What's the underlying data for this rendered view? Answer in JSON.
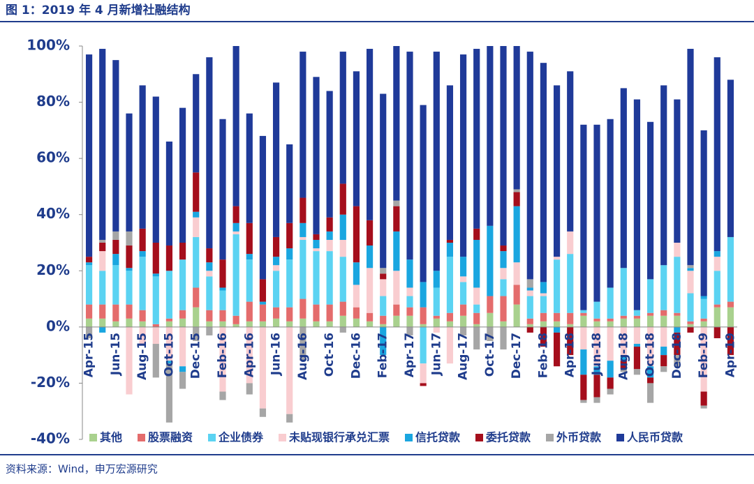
{
  "header": {
    "title": "图 1：2019 年 4 月新增社融结构"
  },
  "footer": {
    "source": "资料来源：Wind，申万宏源研究"
  },
  "chart_data": {
    "type": "stacked-bar",
    "categories": [
      "Apr-15",
      null,
      "Jun-15",
      null,
      "Aug-15",
      null,
      "Oct-15",
      null,
      "Dec-15",
      null,
      "Feb-16",
      null,
      "Apr-16",
      null,
      "Jun-16",
      null,
      "Aug-16",
      null,
      "Oct-16",
      null,
      "Dec-16",
      null,
      "Feb-17",
      null,
      "Apr-17",
      null,
      "Jun-17",
      null,
      "Aug-17",
      null,
      "Oct-17",
      null,
      "Dec-17",
      null,
      "Feb-18",
      null,
      "Apr-18",
      null,
      "Jun-18",
      null,
      "Aug-18",
      null,
      "Oct-18",
      null,
      "Dec-18",
      null,
      "Feb-19",
      null,
      "Apr-19"
    ],
    "ylim": [
      -40,
      100
    ],
    "yticks": [
      {
        "value": -40,
        "label": "-40%"
      },
      {
        "value": -20,
        "label": "-20%"
      },
      {
        "value": 0,
        "label": "0%"
      },
      {
        "value": 20,
        "label": "20%"
      },
      {
        "value": 40,
        "label": "40%"
      },
      {
        "value": 60,
        "label": "60%"
      },
      {
        "value": 80,
        "label": "80%"
      },
      {
        "value": 100,
        "label": "100%"
      }
    ],
    "legend": "bottom",
    "series": [
      {
        "name": "其他",
        "color": "#a9d18e",
        "values": [
          3,
          3,
          2,
          3,
          2,
          0,
          2,
          3,
          7,
          2,
          2,
          1,
          2,
          2,
          3,
          2,
          3,
          2,
          2,
          4,
          3,
          2,
          1,
          4,
          4,
          1,
          3,
          2,
          4,
          1,
          5,
          2,
          8,
          1,
          2,
          2,
          1,
          4,
          2,
          2,
          3,
          3,
          4,
          4,
          4,
          1,
          2,
          7,
          7
        ]
      },
      {
        "name": "股票融资",
        "color": "#e46c6c",
        "values": [
          5,
          5,
          6,
          5,
          4,
          1,
          1,
          3,
          7,
          4,
          4,
          3,
          7,
          6,
          4,
          5,
          7,
          6,
          6,
          5,
          4,
          3,
          3,
          4,
          3,
          6,
          1,
          3,
          4,
          4,
          6,
          9,
          7,
          2,
          3,
          3,
          4,
          1,
          1,
          1,
          1,
          1,
          1,
          2,
          1,
          1,
          1,
          1,
          2
        ]
      },
      {
        "name": "企业债券",
        "color": "#5bd3f2",
        "values": [
          14,
          12,
          14,
          12,
          19,
          17,
          17,
          18,
          18,
          12,
          7,
          29,
          15,
          0,
          13,
          17,
          21,
          19,
          19,
          16,
          0,
          0,
          7,
          0,
          4,
          -13,
          10,
          20,
          8,
          3,
          0,
          6,
          0,
          8,
          6,
          19,
          21,
          1,
          6,
          11,
          17,
          2,
          12,
          16,
          20,
          10,
          7,
          12,
          23
        ]
      },
      {
        "name": "未贴现银行承兑汇票",
        "color": "#f9cdd0",
        "values": [
          0,
          7,
          0,
          -24,
          -6,
          -6,
          -12,
          -14,
          7,
          2,
          -23,
          1,
          -20,
          -29,
          2,
          -31,
          1,
          1,
          4,
          6,
          8,
          16,
          6,
          12,
          3,
          -7,
          -2,
          -13,
          2,
          6,
          0,
          4,
          8,
          2,
          1,
          1,
          8,
          -8,
          -14,
          -12,
          -10,
          -6,
          -14,
          -7,
          5,
          8,
          -23,
          5,
          0
        ]
      },
      {
        "name": "信托贷款",
        "color": "#1aa6e0",
        "values": [
          1,
          -2,
          4,
          1,
          2,
          1,
          -1,
          -2,
          2,
          3,
          1,
          3,
          2,
          1,
          3,
          4,
          5,
          3,
          3,
          9,
          8,
          8,
          -10,
          14,
          10,
          9,
          6,
          5,
          7,
          17,
          25,
          6,
          20,
          1,
          4,
          -2,
          0,
          -9,
          -3,
          -6,
          -2,
          -1,
          -4,
          -3,
          -2,
          1,
          1,
          2,
          0
        ]
      },
      {
        "name": "委托贷款",
        "color": "#a50e1c",
        "values": [
          2,
          3,
          5,
          8,
          8,
          11,
          9,
          6,
          14,
          5,
          10,
          6,
          11,
          8,
          7,
          9,
          9,
          2,
          5,
          11,
          20,
          9,
          2,
          9,
          0,
          -1,
          0,
          1,
          0,
          4,
          0,
          2,
          5,
          -2,
          -7,
          -12,
          -10,
          -9,
          -8,
          -4,
          -3,
          -8,
          -2,
          -4,
          -8,
          -2,
          -5,
          -4,
          -10
        ]
      },
      {
        "name": "外币贷款",
        "color": "#a6a6a6",
        "values": [
          -4,
          1,
          3,
          5,
          0,
          -12,
          -21,
          -6,
          -5,
          -3,
          -3,
          0,
          -4,
          -3,
          0,
          -3,
          -12,
          0,
          0,
          -2,
          0,
          0,
          2,
          2,
          -3,
          0,
          0,
          0,
          -3,
          -8,
          -5,
          -8,
          1,
          3,
          0,
          0,
          0,
          -1,
          -2,
          -2,
          -1,
          -2,
          -7,
          -2,
          -4,
          1,
          -1,
          0,
          0
        ]
      },
      {
        "name": "人民币贷款",
        "color": "#1f3a99",
        "values": [
          72,
          68,
          61,
          42,
          51,
          52,
          37,
          48,
          35,
          68,
          50,
          57,
          39,
          51,
          55,
          28,
          52,
          56,
          45,
          47,
          48,
          61,
          62,
          55,
          74,
          63,
          78,
          55,
          72,
          64,
          64,
          71,
          51,
          81,
          78,
          61,
          57,
          66,
          63,
          60,
          64,
          75,
          56,
          64,
          51,
          77,
          59,
          69,
          56
        ]
      }
    ]
  }
}
